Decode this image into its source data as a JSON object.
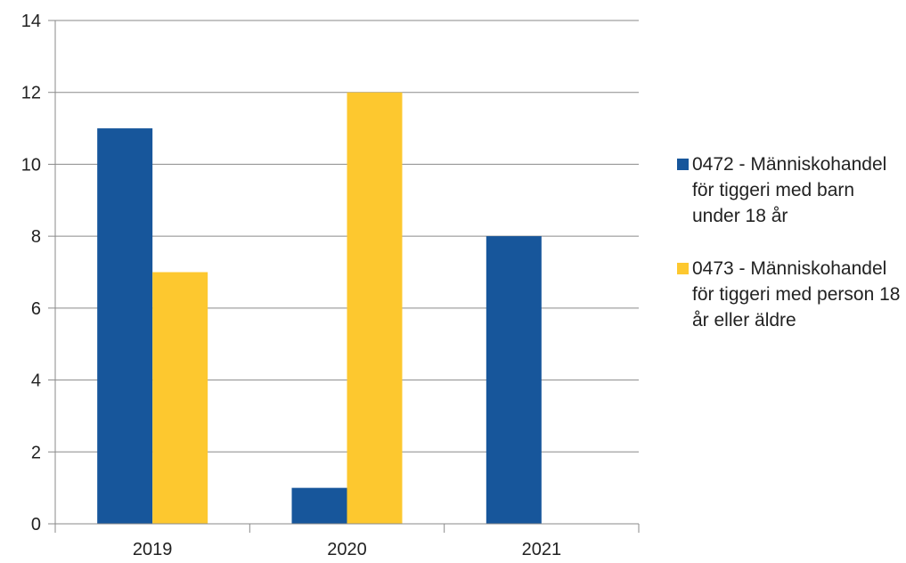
{
  "chart_data": {
    "type": "bar",
    "categories": [
      "2019",
      "2020",
      "2021"
    ],
    "series": [
      {
        "name": "0472 - Människohandel för tiggeri med barn under 18 år",
        "values": [
          11,
          1,
          8
        ],
        "color": "#17569b"
      },
      {
        "name": "0473 - Människohandel för tiggeri med person 18 år eller äldre",
        "values": [
          7,
          12,
          0
        ],
        "color": "#fdc82f"
      }
    ],
    "title": "",
    "xlabel": "",
    "ylabel": "",
    "ylim": [
      0,
      14
    ],
    "yticks": [
      "0",
      "2",
      "4",
      "6",
      "8",
      "10",
      "12",
      "14"
    ],
    "grid": true,
    "legend_position": "right"
  }
}
